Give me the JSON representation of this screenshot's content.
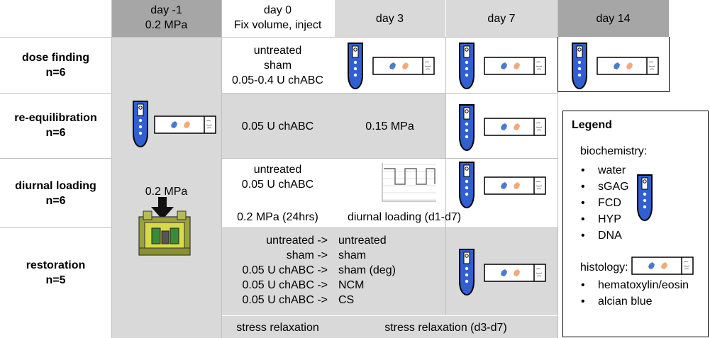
{
  "columns": [
    {
      "line1": "day -1",
      "line2": "0.2 MPa"
    },
    {
      "line1": "day 0",
      "line2": "Fix volume, inject"
    },
    {
      "line1": "day 3"
    },
    {
      "line1": "day 7"
    },
    {
      "line1": "day 14"
    }
  ],
  "rows": {
    "dose_finding": {
      "name": "dose finding",
      "n": "n=6",
      "day0": [
        "untreated",
        "sham",
        "0.05-0.4 U chABC"
      ]
    },
    "reequilibration": {
      "name": "re-equilibration",
      "n": "n=6",
      "day0": "0.05 U chABC",
      "day3": "0.15 MPa"
    },
    "diurnal": {
      "name": "diurnal loading",
      "n": "n=6",
      "day0": [
        "untreated",
        "0.05 U chABC"
      ],
      "day0b": "0.2 MPa (24hrs)",
      "caption": "diurnal loading (d1-d7)"
    },
    "restoration": {
      "name": "restoration",
      "n": "n=5",
      "day0": [
        "untreated ->",
        "sham ->",
        "0.05 U chABC ->",
        "0.05 U chABC ->",
        "0.05 U chABC ->"
      ],
      "day3": [
        "untreated",
        "sham",
        "sham (deg)",
        "NCM",
        "CS"
      ]
    },
    "stress": {
      "day0": "stress relaxation",
      "day3": "stress relaxation (d3-d7)"
    }
  },
  "left_label": "0.2 MPa",
  "legend": {
    "title": "Legend",
    "biochem_title": "biochemistry:",
    "biochem_items": [
      "water",
      "sGAG",
      "FCD",
      "HYP",
      "DNA"
    ],
    "histology_title": "histology:",
    "histology_items": [
      "hematoxylin/eosin",
      "alcian blue"
    ]
  },
  "icons": {
    "tube": "sample-tube-icon",
    "slide": "histology-slide-icon",
    "loader": "loading-device-icon"
  },
  "colors": {
    "header_gray": "#a6a6a6",
    "cell_gray": "#d9d9d9",
    "tube_blue": "#2f5fd0",
    "blob_blue": "#4a7bd1",
    "blob_orange": "#f4a979"
  }
}
